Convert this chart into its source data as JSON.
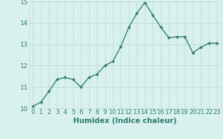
{
  "x": [
    0,
    1,
    2,
    3,
    4,
    5,
    6,
    7,
    8,
    9,
    10,
    11,
    12,
    13,
    14,
    15,
    16,
    17,
    18,
    19,
    20,
    21,
    22,
    23
  ],
  "y": [
    10.1,
    10.3,
    10.8,
    11.35,
    11.45,
    11.35,
    11.0,
    11.45,
    11.6,
    12.0,
    12.2,
    12.9,
    13.8,
    14.45,
    14.95,
    14.35,
    13.8,
    13.3,
    13.35,
    13.35,
    12.6,
    12.85,
    13.05,
    13.05
  ],
  "line_color": "#2e7d6e",
  "marker": "D",
  "marker_size": 2.0,
  "bg_color": "#d8f0ee",
  "grid_color": "#c0dcd8",
  "xlabel": "Humidex (Indice chaleur)",
  "ylim": [
    10,
    15
  ],
  "xlim_min": -0.5,
  "xlim_max": 23.5,
  "yticks": [
    10,
    11,
    12,
    13,
    14,
    15
  ],
  "xticks": [
    0,
    1,
    2,
    3,
    4,
    5,
    6,
    7,
    8,
    9,
    10,
    11,
    12,
    13,
    14,
    15,
    16,
    17,
    18,
    19,
    20,
    21,
    22,
    23
  ],
  "font_color": "#2e7d6e",
  "tick_fontsize": 6.5,
  "xlabel_fontsize": 7.5,
  "linewidth": 1.0
}
